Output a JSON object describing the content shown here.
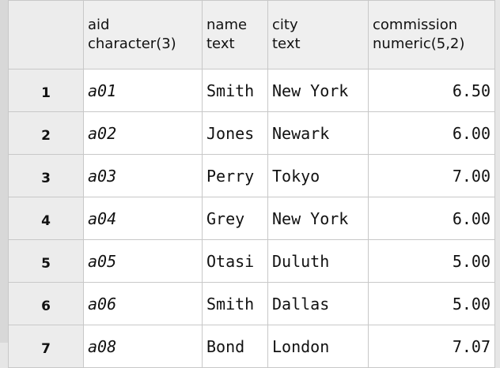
{
  "table": {
    "columns": [
      {
        "name": "aid",
        "type": "character(3)"
      },
      {
        "name": "name",
        "type": "text"
      },
      {
        "name": "city",
        "type": "text"
      },
      {
        "name": "commission",
        "type": "numeric(5,2)"
      }
    ],
    "row_numbers": [
      "1",
      "2",
      "3",
      "4",
      "5",
      "6",
      "7"
    ],
    "rows": [
      [
        "a01",
        "Smith",
        "New York",
        "6.50"
      ],
      [
        "a02",
        "Jones",
        "Newark",
        "6.00"
      ],
      [
        "a03",
        "Perry",
        "Tokyo",
        "7.00"
      ],
      [
        "a04",
        "Grey",
        "New York",
        "6.00"
      ],
      [
        "a05",
        "Otasi",
        "Duluth",
        "5.00"
      ],
      [
        "a06",
        "Smith",
        "Dallas",
        "5.00"
      ],
      [
        "a08",
        "Bond",
        "London",
        "7.07"
      ]
    ]
  }
}
